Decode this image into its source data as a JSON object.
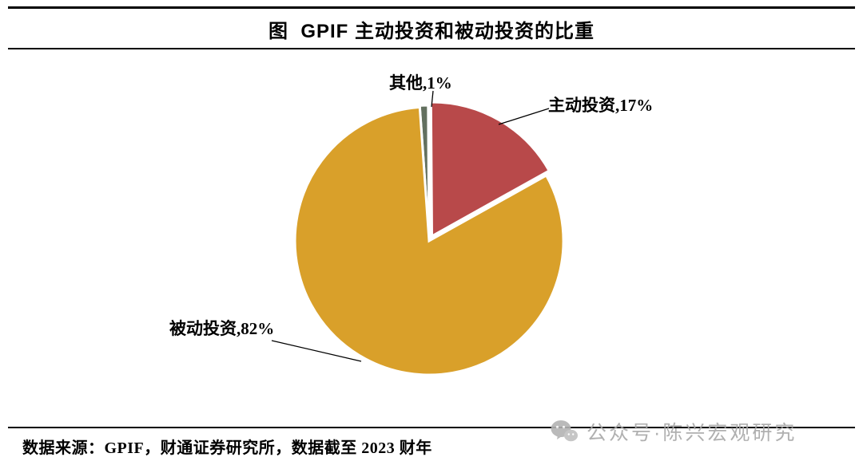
{
  "title": "图  GPIF 主动投资和被动投资的比重",
  "chart_data": {
    "type": "pie",
    "title": "图 GPIF 主动投资和被动投资的比重",
    "unit": "%",
    "start_angle_deg": -4,
    "direction": "clockwise",
    "legend_position": "none",
    "data_labels": true,
    "slices": [
      {
        "label": "其他",
        "value": 1,
        "display": "其他,1%",
        "color": "#63705f",
        "offset": 2
      },
      {
        "label": "主动投资",
        "value": 17,
        "display": "主动投资,17%",
        "color": "#b8494a",
        "offset": 7
      },
      {
        "label": "被动投资",
        "value": 82,
        "display": "被动投资,82%",
        "color": "#d9a02a",
        "offset": 0
      }
    ]
  },
  "footer": {
    "source": "数据来源：GPIF，财通证券研究所，数据截至 2023 财年"
  },
  "watermark": {
    "text": "公众号·陈兴宏观研究",
    "icon": "wechat-icon",
    "color": "#a8a8a8"
  }
}
